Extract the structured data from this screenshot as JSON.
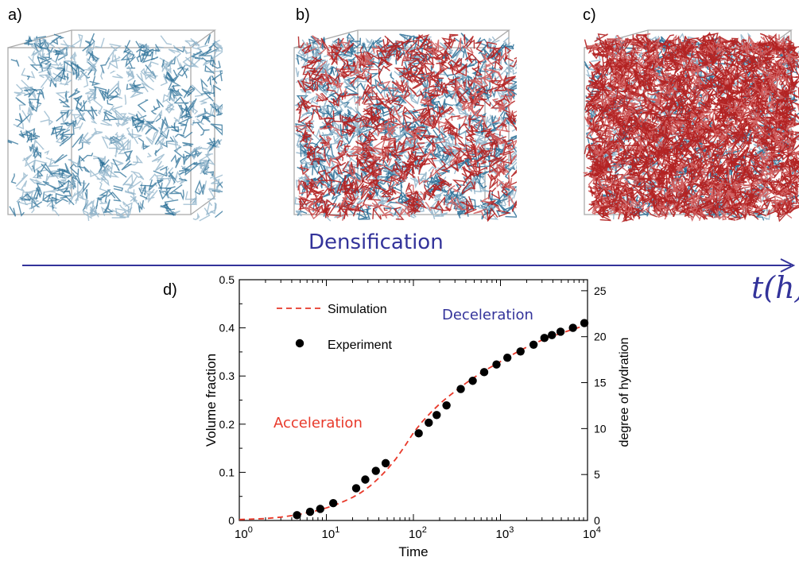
{
  "panels": {
    "a": "a)",
    "b": "b)",
    "c": "c)",
    "d": "d)"
  },
  "densification_label": "Densification",
  "time_axis_label": "t(h)",
  "colors": {
    "blue_network": "#2a6f97",
    "red_network": "#b22222",
    "axis_blue": "#33339a",
    "simulation": "#e8392a",
    "experiment": "#000000"
  },
  "chart_data": {
    "type": "scatter",
    "xlabel": "Time",
    "ylabel": "Volume fraction",
    "y2label": "degree of hydration",
    "xscale": "log",
    "xlim": [
      1,
      10000
    ],
    "ylim": [
      0,
      0.5
    ],
    "y2lim": [
      0,
      26.2
    ],
    "x_ticks": [
      {
        "base": "10",
        "exp": "0"
      },
      {
        "base": "10",
        "exp": "1"
      },
      {
        "base": "10",
        "exp": "2"
      },
      {
        "base": "10",
        "exp": "3"
      },
      {
        "base": "10",
        "exp": "4"
      }
    ],
    "y_ticks": [
      "0",
      "0.1",
      "0.2",
      "0.3",
      "0.4",
      "0.5"
    ],
    "y2_ticks": [
      "0",
      "5",
      "10",
      "15",
      "20",
      "25"
    ],
    "legend": {
      "simulation": "Simulation",
      "experiment": "Experiment"
    },
    "annotations": {
      "acceleration": "Acceleration",
      "deceleration": "Deceleration"
    },
    "series": [
      {
        "name": "Simulation",
        "style": "dashed-line",
        "x": [
          1,
          2,
          3,
          4,
          5,
          6,
          8,
          10,
          13,
          16,
          20,
          25,
          32,
          40,
          50,
          63,
          80,
          100,
          126,
          160,
          200,
          250,
          320,
          400,
          500,
          630,
          800,
          1000,
          1300,
          1600,
          2000,
          2500,
          3200,
          4000,
          5000,
          6300,
          8000,
          10000
        ],
        "y": [
          0.002,
          0.004,
          0.007,
          0.01,
          0.013,
          0.016,
          0.021,
          0.026,
          0.033,
          0.04,
          0.048,
          0.058,
          0.072,
          0.088,
          0.106,
          0.128,
          0.155,
          0.182,
          0.205,
          0.225,
          0.242,
          0.257,
          0.272,
          0.285,
          0.297,
          0.309,
          0.32,
          0.33,
          0.342,
          0.351,
          0.36,
          0.368,
          0.377,
          0.383,
          0.389,
          0.395,
          0.401,
          0.406
        ]
      },
      {
        "name": "Experiment",
        "style": "markers",
        "x": [
          4.6,
          6.5,
          8.5,
          12,
          22,
          28,
          37,
          48,
          115,
          150,
          185,
          240,
          350,
          480,
          650,
          900,
          1200,
          1700,
          2400,
          3200,
          3900,
          4900,
          6800,
          9200
        ],
        "y": [
          0.011,
          0.018,
          0.024,
          0.036,
          0.067,
          0.085,
          0.103,
          0.119,
          0.181,
          0.203,
          0.219,
          0.239,
          0.273,
          0.29,
          0.308,
          0.324,
          0.338,
          0.351,
          0.365,
          0.379,
          0.385,
          0.392,
          0.4,
          0.41
        ]
      }
    ]
  }
}
